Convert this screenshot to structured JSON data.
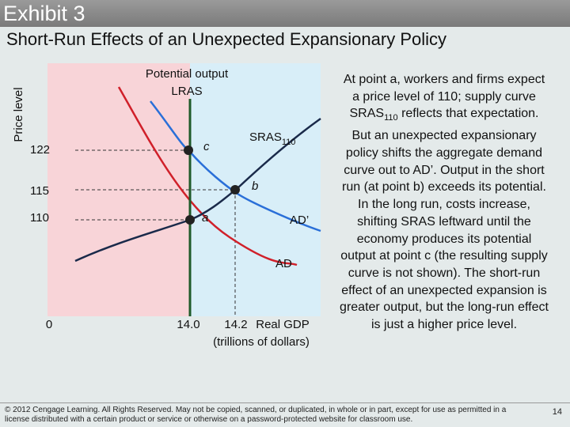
{
  "header": {
    "title": "Exhibit 3",
    "subtitle": "Short-Run Effects of an Unexpected Expansionary Policy"
  },
  "diagram": {
    "y_axis_label": "Price level",
    "y_ticks": [
      "122",
      "115",
      "110"
    ],
    "origin": "0",
    "x_ticks": [
      "14.0",
      "14.2"
    ],
    "x_axis_label": [
      "Real GDP",
      "(trillions of dollars)"
    ],
    "lras_label": [
      "Potential output",
      "LRAS"
    ],
    "sras_label": {
      "text": "SRAS",
      "sub": "110"
    },
    "ad_label": "AD",
    "ad_prime_label": "AD’",
    "points": [
      "a",
      "b",
      "c"
    ]
  },
  "body": {
    "before": "At point a, workers and firms expect a price level of 110; supply curve SRAS",
    "sub": "110",
    "after": " reflects that expectation. But an unexpected expansionary policy shifts the aggregate demand curve out to AD’. Output in the short run (at point b) exceeds its potential. In the long run, costs increase, shifting SRAS leftward until the economy produces its potential output at point c (the resulting supply curve is not shown). The short-run effect of an unexpected expansion is greater output, but the long-run effect is just a higher price level."
  },
  "footer": {
    "copyright": "© 2012 Cengage Learning. All Rights Reserved. May not be copied, scanned, or duplicated, in whole or in part, except for use as permitted in a license distributed with a certain product or service or otherwise on a password-protected website for classroom use.",
    "page": "14"
  }
}
